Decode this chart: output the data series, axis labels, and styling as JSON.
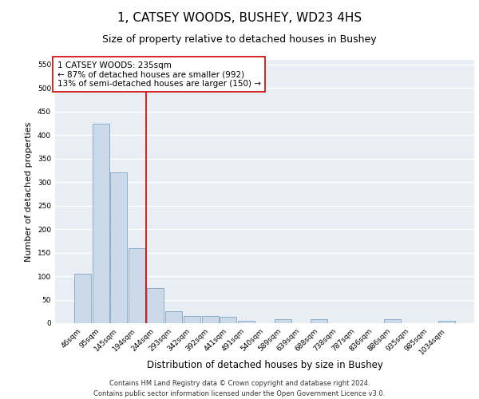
{
  "title": "1, CATSEY WOODS, BUSHEY, WD23 4HS",
  "subtitle": "Size of property relative to detached houses in Bushey",
  "xlabel": "Distribution of detached houses by size in Bushey",
  "ylabel": "Number of detached properties",
  "categories": [
    "46sqm",
    "95sqm",
    "145sqm",
    "194sqm",
    "244sqm",
    "293sqm",
    "342sqm",
    "392sqm",
    "441sqm",
    "491sqm",
    "540sqm",
    "589sqm",
    "639sqm",
    "688sqm",
    "738sqm",
    "787sqm",
    "836sqm",
    "886sqm",
    "935sqm",
    "985sqm",
    "1034sqm"
  ],
  "values": [
    105,
    425,
    320,
    160,
    75,
    25,
    15,
    15,
    13,
    5,
    0,
    8,
    0,
    8,
    0,
    0,
    0,
    8,
    0,
    0,
    5
  ],
  "bar_color": "#ccd9e8",
  "bar_edge_color": "#6a9abf",
  "vline_color": "#cc0000",
  "vline_xindex": 4,
  "annotation_text": "1 CATSEY WOODS: 235sqm\n← 87% of detached houses are smaller (992)\n13% of semi-detached houses are larger (150) →",
  "annotation_box_color": "#ffffff",
  "annotation_box_edge": "#cc0000",
  "ylim": [
    0,
    560
  ],
  "yticks": [
    0,
    50,
    100,
    150,
    200,
    250,
    300,
    350,
    400,
    450,
    500,
    550
  ],
  "background_color": "#e8eef4",
  "grid_color": "#ffffff",
  "footer": "Contains HM Land Registry data © Crown copyright and database right 2024.\nContains public sector information licensed under the Open Government Licence v3.0.",
  "title_fontsize": 11,
  "subtitle_fontsize": 9,
  "xlabel_fontsize": 8.5,
  "ylabel_fontsize": 8,
  "tick_fontsize": 6.5,
  "annotation_fontsize": 7.5,
  "footer_fontsize": 6
}
